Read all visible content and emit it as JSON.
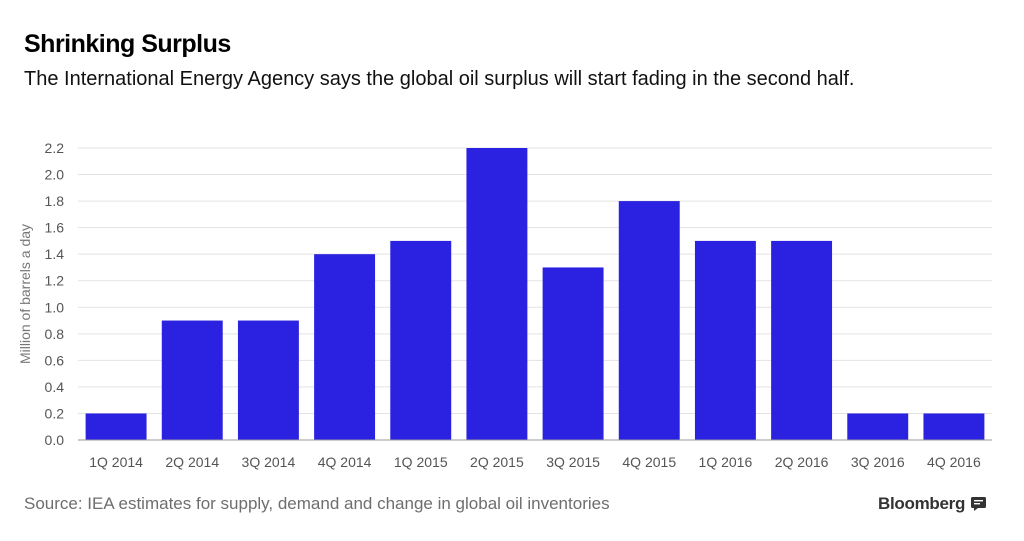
{
  "title": "Shrinking Surplus",
  "subtitle": "The International Energy Agency says the global oil surplus will start fading in the second half.",
  "source": "Source: IEA estimates for supply, demand and change in global oil inventories",
  "brand": "Bloomberg",
  "chart_data": {
    "type": "bar",
    "title": "Shrinking Surplus",
    "xlabel": "",
    "ylabel": "Million of barrels a day",
    "ylim": [
      0,
      2.2
    ],
    "yticks": [
      "0.0",
      "0.2",
      "0.4",
      "0.6",
      "0.8",
      "1.0",
      "1.2",
      "1.4",
      "1.6",
      "1.8",
      "2.0",
      "2.2"
    ],
    "grid": true,
    "bar_color": "#2a22e0",
    "categories": [
      "1Q 2014",
      "2Q 2014",
      "3Q 2014",
      "4Q 2014",
      "1Q 2015",
      "2Q 2015",
      "3Q 2015",
      "4Q 2015",
      "1Q 2016",
      "2Q 2016",
      "3Q 2016",
      "4Q 2016"
    ],
    "values": [
      0.2,
      0.9,
      0.9,
      1.4,
      1.5,
      2.2,
      1.3,
      1.8,
      1.5,
      1.5,
      0.2,
      0.2
    ]
  }
}
